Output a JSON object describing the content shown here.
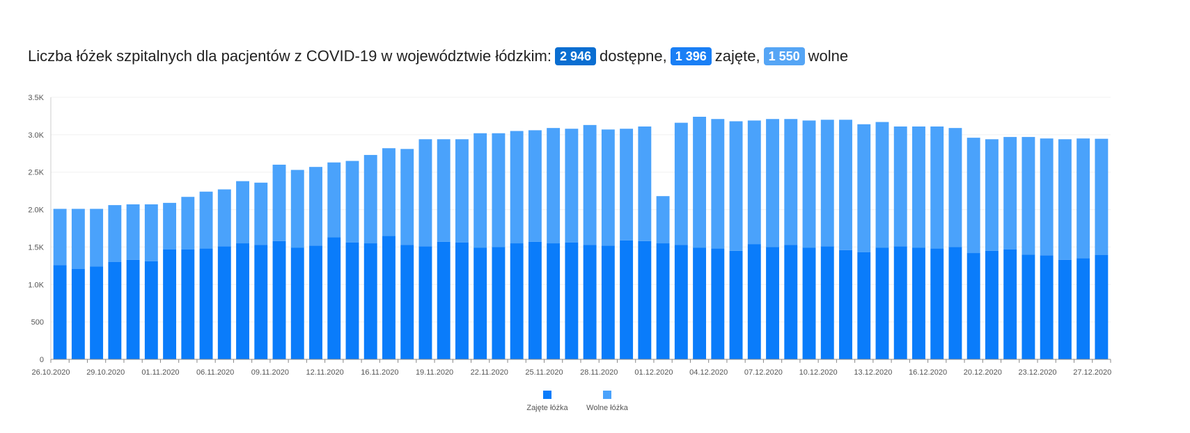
{
  "heading": {
    "prefix": "Liczba łóżek szpitalnych dla pacjentów z COVID-19 w województwie łódzkim:",
    "available_value": "2 946",
    "available_label": "dostępne,",
    "occupied_value": "1 396",
    "occupied_label": "zajęte,",
    "free_value": "1 550",
    "free_label": "wolne",
    "badge_colors": {
      "available": "#0a6ed1",
      "occupied": "#1a7ff5",
      "free": "#55a5f5"
    }
  },
  "chart_data": {
    "type": "bar",
    "stacked": true,
    "grid": true,
    "legend_position": "bottom-center",
    "ylim": [
      0,
      3500
    ],
    "y_ticks": [
      0,
      500,
      1000,
      1500,
      2000,
      2500,
      3000,
      3500
    ],
    "y_tick_labels": [
      "0",
      "500",
      "1.0K",
      "1.5K",
      "2.0K",
      "2.5K",
      "3.0K",
      "3.5K"
    ],
    "x_tick_labels": [
      "26.10.2020",
      "29.10.2020",
      "01.11.2020",
      "06.11.2020",
      "09.11.2020",
      "12.11.2020",
      "16.11.2020",
      "19.11.2020",
      "22.11.2020",
      "25.11.2020",
      "28.11.2020",
      "01.12.2020",
      "04.12.2020",
      "07.12.2020",
      "10.12.2020",
      "13.12.2020",
      "16.12.2020",
      "20.12.2020",
      "23.12.2020",
      "27.12.2020"
    ],
    "x_tick_indices": [
      0,
      3,
      6,
      9,
      12,
      15,
      18,
      21,
      24,
      27,
      30,
      33,
      36,
      39,
      42,
      45,
      48,
      51,
      54,
      57
    ],
    "bar_count": 58,
    "series": [
      {
        "name": "Zajęte łóżka",
        "color": "#0a7cfa",
        "values": [
          1260,
          1210,
          1240,
          1300,
          1330,
          1310,
          1470,
          1470,
          1480,
          1510,
          1550,
          1530,
          1580,
          1490,
          1520,
          1630,
          1560,
          1550,
          1650,
          1530,
          1510,
          1570,
          1560,
          1490,
          1500,
          1550,
          1570,
          1550,
          1560,
          1530,
          1520,
          1590,
          1580,
          1550,
          1530,
          1490,
          1480,
          1450,
          1540,
          1500,
          1530,
          1490,
          1510,
          1460,
          1430,
          1490,
          1510,
          1490,
          1480,
          1500,
          1420,
          1450,
          1470,
          1400,
          1390,
          1330,
          1350,
          1396
        ]
      },
      {
        "name": "Wolne łóżka",
        "color": "#4aa2fb",
        "values": [
          750,
          800,
          770,
          760,
          740,
          760,
          620,
          700,
          760,
          760,
          830,
          830,
          1020,
          1040,
          1050,
          1000,
          1090,
          1180,
          1170,
          1280,
          1430,
          1370,
          1380,
          1530,
          1520,
          1500,
          1490,
          1540,
          1520,
          1600,
          1550,
          1490,
          1530,
          630,
          1630,
          1750,
          1730,
          1730,
          1650,
          1710,
          1680,
          1700,
          1690,
          1740,
          1710,
          1680,
          1600,
          1620,
          1630,
          1590,
          1540,
          1490,
          1500,
          1570,
          1560,
          1610,
          1600,
          1550
        ]
      }
    ]
  }
}
